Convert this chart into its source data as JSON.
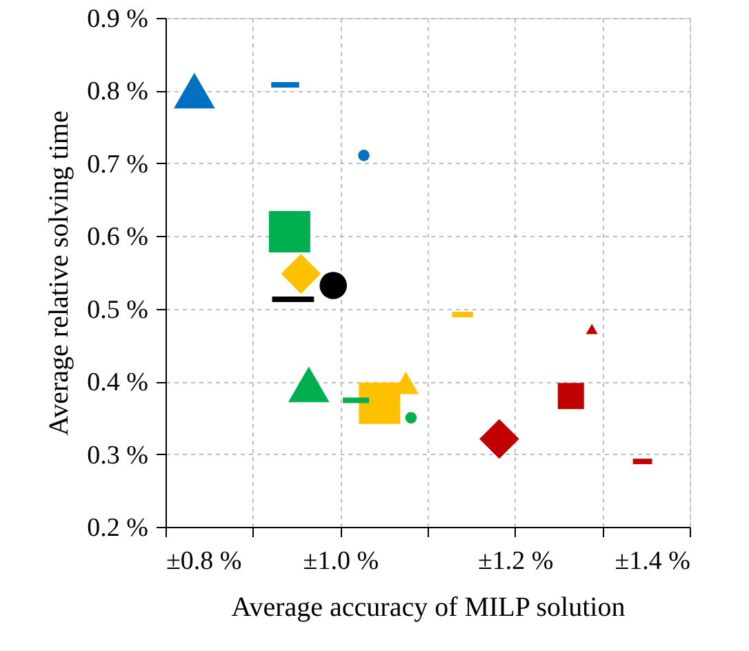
{
  "chart_data": {
    "type": "bubble",
    "xlabel": "Average accuracy of MILP solution",
    "ylabel": "Average relative solving time",
    "xlim": [
      0.8,
      1.4
    ],
    "ylim": [
      0.2,
      0.9
    ],
    "xticks": [
      {
        "value": 0.8,
        "label": "±0.8 %"
      },
      {
        "value": 0.9,
        "label": null
      },
      {
        "value": 1.0,
        "label": "±1.0 %"
      },
      {
        "value": 1.1,
        "label": null
      },
      {
        "value": 1.2,
        "label": "±1.2 %"
      },
      {
        "value": 1.3,
        "label": null
      },
      {
        "value": 1.4,
        "label": "±1.4 %"
      }
    ],
    "yticks": [
      {
        "value": 0.2,
        "label": "0.2 %"
      },
      {
        "value": 0.3,
        "label": "0.3 %"
      },
      {
        "value": 0.4,
        "label": "0.4 %"
      },
      {
        "value": 0.5,
        "label": "0.5 %"
      },
      {
        "value": 0.6,
        "label": "0.6 %"
      },
      {
        "value": 0.7,
        "label": "0.7 %"
      },
      {
        "value": 0.8,
        "label": "0.8 %"
      },
      {
        "value": 0.9,
        "label": "0.9 %"
      }
    ],
    "grid": true,
    "legend": false,
    "series": [
      {
        "color": "#0070c0",
        "marker": "triangle",
        "x": [
          0.833
        ],
        "values": [
          0.8
        ],
        "sizes": [
          0.43
        ]
      },
      {
        "type": "line",
        "color": "#0070c0",
        "x": [
          0.921,
          0.953
        ],
        "values": [
          0.808,
          0.808
        ]
      },
      {
        "color": "#0070c0",
        "marker": "circle",
        "x": [
          1.027
        ],
        "values": [
          0.711
        ],
        "sizes": [
          0.06
        ]
      },
      {
        "color": "#00b050",
        "marker": "square",
        "x": [
          0.942
        ],
        "values": [
          0.606
        ],
        "sizes": [
          1
        ]
      },
      {
        "color": "#00b050",
        "marker": "triangle",
        "x": [
          0.964
        ],
        "values": [
          0.396
        ],
        "sizes": [
          0.43
        ]
      },
      {
        "type": "line",
        "color": "#00b050",
        "x": [
          1.003,
          1.033
        ],
        "values": [
          0.374,
          0.374
        ]
      },
      {
        "color": "#00b050",
        "marker": "circle",
        "x": [
          1.081
        ],
        "values": [
          0.35
        ],
        "sizes": [
          0.06
        ]
      },
      {
        "color": "#ffc000",
        "marker": "diamond",
        "x": [
          0.955
        ],
        "values": [
          0.548
        ],
        "sizes": [
          0.46
        ]
      },
      {
        "color": "#ffc000",
        "marker": "square",
        "x": [
          1.045
        ],
        "values": [
          0.37
        ],
        "sizes": [
          1
        ]
      },
      {
        "color": "#ffc000",
        "marker": "triangle",
        "x": [
          1.075
        ],
        "values": [
          0.398
        ],
        "sizes": [
          0.17
        ]
      },
      {
        "type": "line",
        "color": "#ffc000",
        "x": [
          1.128,
          1.152
        ],
        "values": [
          0.492,
          0.492
        ]
      },
      {
        "color": "#000000",
        "marker": "circle",
        "x": [
          0.992
        ],
        "values": [
          0.532
        ],
        "sizes": [
          0.34
        ]
      },
      {
        "type": "line",
        "color": "#000000",
        "x": [
          0.922,
          0.97
        ],
        "values": [
          0.513,
          0.513
        ]
      },
      {
        "color": "#c00000",
        "marker": "diamond",
        "x": [
          1.182
        ],
        "values": [
          0.321
        ],
        "sizes": [
          0.46
        ]
      },
      {
        "color": "#c00000",
        "marker": "square",
        "x": [
          1.264
        ],
        "values": [
          0.38
        ],
        "sizes": [
          0.4
        ]
      },
      {
        "color": "#c00000",
        "marker": "triangle",
        "x": [
          1.288
        ],
        "values": [
          0.472
        ],
        "sizes": [
          0.035
        ]
      },
      {
        "type": "line",
        "color": "#c00000",
        "x": [
          1.335,
          1.357
        ],
        "values": [
          0.29,
          0.29
        ]
      }
    ]
  }
}
